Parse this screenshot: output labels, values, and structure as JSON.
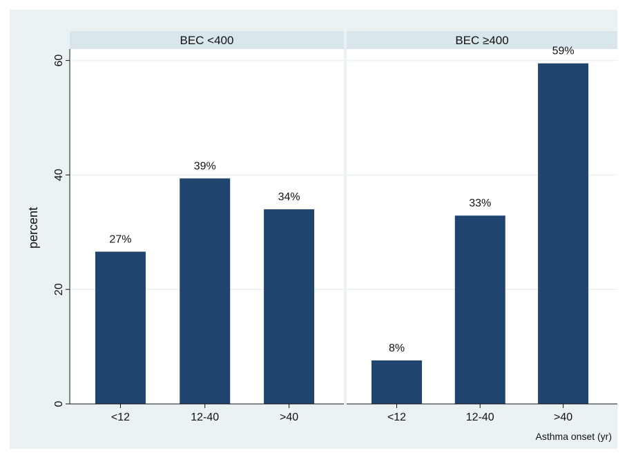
{
  "colors": {
    "background": "#eaf2f3",
    "plot": "#ffffff",
    "bar": "#1f456e",
    "facet_header": "#d9e6eb",
    "grid": "#eaf2f3"
  },
  "chart_data": {
    "type": "bar",
    "ylabel": "percent",
    "xlabel": "Asthma onset (yr)",
    "ylim": [
      0,
      62
    ],
    "yticks": [
      0,
      20,
      40,
      60
    ],
    "grid": true,
    "categories": [
      "<12",
      "12-40",
      ">40"
    ],
    "panels": [
      {
        "title": "BEC <400",
        "values": [
          26.6,
          39.4,
          34.0
        ],
        "labels": [
          "27%",
          "39%",
          "34%"
        ]
      },
      {
        "title": "BEC ≥400",
        "values": [
          7.6,
          32.9,
          59.5
        ],
        "labels": [
          "8%",
          "33%",
          "59%"
        ]
      }
    ]
  }
}
